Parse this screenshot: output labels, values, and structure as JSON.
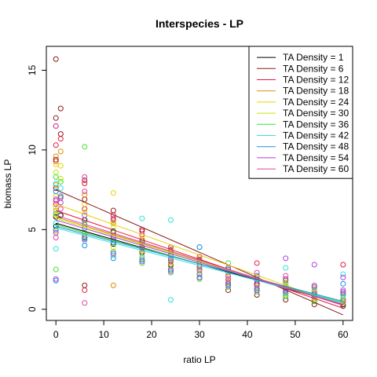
{
  "chart_data": {
    "type": "scatter",
    "title": "Interspecies - LP",
    "xlabel": "ratio LP",
    "ylabel": "biomass LP",
    "xlim": [
      -2,
      62
    ],
    "ylim": [
      -0.7,
      16.5
    ],
    "xticks": [
      0,
      10,
      20,
      30,
      40,
      50,
      60
    ],
    "yticks": [
      0,
      5,
      10,
      15
    ],
    "grid": false,
    "legend_position": "top-right",
    "point_style": "open-circle",
    "series": [
      {
        "name": "TA Density = 1",
        "color": "#000000",
        "fit": [
          5.4,
          0.3
        ],
        "points": [
          [
            0,
            5.8
          ],
          [
            0,
            5.2
          ],
          [
            1,
            5.9
          ],
          [
            6,
            5.6
          ],
          [
            6,
            4.5
          ],
          [
            12,
            4.9
          ],
          [
            12,
            4.1
          ],
          [
            18,
            4.2
          ],
          [
            18,
            3.6
          ],
          [
            24,
            3.7
          ],
          [
            24,
            2.8
          ],
          [
            30,
            3.1
          ],
          [
            30,
            2.4
          ],
          [
            36,
            2.5
          ],
          [
            36,
            1.8
          ],
          [
            42,
            2.0
          ],
          [
            42,
            1.6
          ],
          [
            48,
            1.5
          ],
          [
            48,
            1.0
          ],
          [
            54,
            1.1
          ],
          [
            54,
            0.7
          ],
          [
            60,
            0.6
          ],
          [
            60,
            0.3
          ]
        ]
      },
      {
        "name": "TA Density = 6",
        "color": "#8B1A1A",
        "fit": [
          7.5,
          -0.35
        ],
        "points": [
          [
            0,
            15.7
          ],
          [
            0,
            12.0
          ],
          [
            0,
            11.5
          ],
          [
            1,
            12.6
          ],
          [
            1,
            11.0
          ],
          [
            0,
            9.4
          ],
          [
            0,
            7.6
          ],
          [
            6,
            8.1
          ],
          [
            6,
            6.9
          ],
          [
            6,
            1.5
          ],
          [
            12,
            6.2
          ],
          [
            12,
            5.6
          ],
          [
            18,
            5.0
          ],
          [
            18,
            4.3
          ],
          [
            24,
            3.8
          ],
          [
            24,
            3.1
          ],
          [
            30,
            2.7
          ],
          [
            30,
            2.0
          ],
          [
            36,
            1.8
          ],
          [
            36,
            1.2
          ],
          [
            42,
            1.5
          ],
          [
            42,
            0.9
          ],
          [
            48,
            0.9
          ],
          [
            48,
            0.6
          ],
          [
            54,
            0.5
          ],
          [
            54,
            0.3
          ],
          [
            60,
            0.4
          ],
          [
            60,
            0.2
          ]
        ]
      },
      {
        "name": "TA Density = 12",
        "color": "#E8173F",
        "fit": [
          6.2,
          0.07
        ],
        "points": [
          [
            0,
            10.3
          ],
          [
            0,
            9.3
          ],
          [
            1,
            10.7
          ],
          [
            1,
            7.0
          ],
          [
            0,
            6.6
          ],
          [
            6,
            7.9
          ],
          [
            6,
            6.3
          ],
          [
            6,
            1.2
          ],
          [
            12,
            5.9
          ],
          [
            12,
            4.8
          ],
          [
            18,
            4.9
          ],
          [
            18,
            3.9
          ],
          [
            24,
            3.9
          ],
          [
            24,
            3.0
          ],
          [
            30,
            3.3
          ],
          [
            30,
            2.4
          ],
          [
            36,
            2.6
          ],
          [
            36,
            1.7
          ],
          [
            42,
            2.9
          ],
          [
            42,
            1.5
          ],
          [
            48,
            1.9
          ],
          [
            48,
            1.1
          ],
          [
            54,
            1.4
          ],
          [
            54,
            0.7
          ],
          [
            60,
            2.8
          ],
          [
            60,
            1.0
          ]
        ]
      },
      {
        "name": "TA Density = 18",
        "color": "#D98E00",
        "fit": [
          5.8,
          0.25
        ],
        "points": [
          [
            0,
            9.6
          ],
          [
            0,
            7.8
          ],
          [
            1,
            9.9
          ],
          [
            0,
            6.2
          ],
          [
            6,
            7.2
          ],
          [
            6,
            5.3
          ],
          [
            12,
            5.4
          ],
          [
            12,
            4.2
          ],
          [
            12,
            1.5
          ],
          [
            18,
            4.4
          ],
          [
            18,
            3.5
          ],
          [
            24,
            3.6
          ],
          [
            24,
            2.7
          ],
          [
            30,
            3.0
          ],
          [
            30,
            2.2
          ],
          [
            36,
            2.3
          ],
          [
            36,
            1.6
          ],
          [
            42,
            2.0
          ],
          [
            42,
            1.3
          ],
          [
            48,
            1.6
          ],
          [
            48,
            0.9
          ],
          [
            54,
            1.2
          ],
          [
            54,
            0.6
          ],
          [
            60,
            0.9
          ],
          [
            60,
            0.4
          ]
        ]
      },
      {
        "name": "TA Density = 24",
        "color": "#E8D000",
        "fit": [
          6.6,
          0.23
        ],
        "points": [
          [
            0,
            9.1
          ],
          [
            0,
            7.1
          ],
          [
            1,
            9.0
          ],
          [
            0,
            5.9
          ],
          [
            6,
            6.6
          ],
          [
            6,
            5.1
          ],
          [
            12,
            7.3
          ],
          [
            12,
            5.5
          ],
          [
            18,
            4.6
          ],
          [
            18,
            3.7
          ],
          [
            24,
            3.8
          ],
          [
            24,
            2.9
          ],
          [
            30,
            3.2
          ],
          [
            30,
            2.4
          ],
          [
            36,
            2.5
          ],
          [
            36,
            1.8
          ],
          [
            42,
            2.1
          ],
          [
            42,
            1.4
          ],
          [
            48,
            1.7
          ],
          [
            48,
            1.0
          ],
          [
            54,
            1.3
          ],
          [
            54,
            0.7
          ],
          [
            60,
            1.0
          ],
          [
            60,
            0.5
          ]
        ]
      },
      {
        "name": "TA Density = 30",
        "color": "#C8E600",
        "fit": [
          5.7,
          0.35
        ],
        "points": [
          [
            0,
            8.6
          ],
          [
            0,
            6.4
          ],
          [
            1,
            8.2
          ],
          [
            0,
            4.9
          ],
          [
            6,
            6.1
          ],
          [
            6,
            4.8
          ],
          [
            12,
            5.1
          ],
          [
            12,
            3.9
          ],
          [
            18,
            4.1
          ],
          [
            18,
            3.2
          ],
          [
            24,
            3.4
          ],
          [
            24,
            2.5
          ],
          [
            30,
            2.8
          ],
          [
            30,
            2.0
          ],
          [
            36,
            2.2
          ],
          [
            36,
            1.5
          ],
          [
            42,
            1.9
          ],
          [
            42,
            1.2
          ],
          [
            48,
            1.5
          ],
          [
            48,
            0.9
          ],
          [
            54,
            1.1
          ],
          [
            54,
            0.6
          ],
          [
            60,
            0.8
          ],
          [
            60,
            0.4
          ]
        ]
      },
      {
        "name": "TA Density = 36",
        "color": "#3AE03A",
        "fit": [
          5.3,
          0.43
        ],
        "points": [
          [
            0,
            8.3
          ],
          [
            0,
            6.0
          ],
          [
            1,
            8.0
          ],
          [
            0,
            2.5
          ],
          [
            6,
            10.2
          ],
          [
            6,
            4.6
          ],
          [
            12,
            4.8
          ],
          [
            12,
            3.6
          ],
          [
            18,
            3.8
          ],
          [
            18,
            2.9
          ],
          [
            24,
            3.1
          ],
          [
            24,
            2.3
          ],
          [
            30,
            2.6
          ],
          [
            30,
            1.9
          ],
          [
            36,
            2.9
          ],
          [
            36,
            1.4
          ],
          [
            42,
            1.8
          ],
          [
            42,
            1.1
          ],
          [
            48,
            1.4
          ],
          [
            48,
            0.8
          ],
          [
            54,
            1.0
          ],
          [
            54,
            0.5
          ],
          [
            60,
            0.9
          ],
          [
            60,
            0.6
          ]
        ]
      },
      {
        "name": "TA Density = 42",
        "color": "#30E0E0",
        "fit": [
          5.1,
          0.4
        ],
        "points": [
          [
            0,
            7.9
          ],
          [
            0,
            5.4
          ],
          [
            1,
            7.6
          ],
          [
            0,
            3.8
          ],
          [
            6,
            5.4
          ],
          [
            6,
            4.3
          ],
          [
            12,
            4.4
          ],
          [
            12,
            3.4
          ],
          [
            18,
            5.7
          ],
          [
            18,
            3.3
          ],
          [
            24,
            5.6
          ],
          [
            24,
            0.6
          ],
          [
            30,
            3.9
          ],
          [
            30,
            2.0
          ],
          [
            36,
            2.4
          ],
          [
            36,
            1.5
          ],
          [
            42,
            1.9
          ],
          [
            42,
            1.2
          ],
          [
            48,
            2.6
          ],
          [
            48,
            1.0
          ],
          [
            54,
            1.4
          ],
          [
            54,
            0.8
          ],
          [
            60,
            2.2
          ],
          [
            60,
            0.9
          ]
        ]
      },
      {
        "name": "TA Density = 48",
        "color": "#1E90E0",
        "fit": [
          5.2,
          0.5
        ],
        "points": [
          [
            0,
            7.4
          ],
          [
            0,
            5.0
          ],
          [
            1,
            7.1
          ],
          [
            0,
            1.8
          ],
          [
            6,
            5.1
          ],
          [
            6,
            4.0
          ],
          [
            12,
            4.2
          ],
          [
            12,
            3.2
          ],
          [
            18,
            4.2
          ],
          [
            18,
            3.1
          ],
          [
            24,
            3.4
          ],
          [
            24,
            2.5
          ],
          [
            30,
            3.9
          ],
          [
            30,
            2.2
          ],
          [
            36,
            2.5
          ],
          [
            36,
            1.6
          ],
          [
            42,
            2.1
          ],
          [
            42,
            1.3
          ],
          [
            48,
            1.8
          ],
          [
            48,
            1.1
          ],
          [
            54,
            1.4
          ],
          [
            54,
            0.9
          ],
          [
            60,
            1.6
          ],
          [
            60,
            1.0
          ]
        ]
      },
      {
        "name": "TA Density = 54",
        "color": "#B040E0",
        "fit": [
          5.6,
          0.31
        ],
        "points": [
          [
            0,
            6.9
          ],
          [
            0,
            4.8
          ],
          [
            1,
            6.7
          ],
          [
            0,
            1.9
          ],
          [
            6,
            5.9
          ],
          [
            6,
            4.4
          ],
          [
            12,
            4.5
          ],
          [
            12,
            3.5
          ],
          [
            18,
            3.9
          ],
          [
            18,
            3.0
          ],
          [
            24,
            3.2
          ],
          [
            24,
            2.4
          ],
          [
            30,
            2.7
          ],
          [
            30,
            2.0
          ],
          [
            36,
            2.1
          ],
          [
            36,
            1.5
          ],
          [
            42,
            1.8
          ],
          [
            42,
            1.2
          ],
          [
            48,
            3.2
          ],
          [
            48,
            1.3
          ],
          [
            54,
            2.8
          ],
          [
            54,
            1.0
          ],
          [
            60,
            2.0
          ],
          [
            60,
            1.2
          ]
        ]
      },
      {
        "name": "TA Density = 60",
        "color": "#E040B0",
        "fit": [
          5.9,
          0.25
        ],
        "points": [
          [
            0,
            11.5
          ],
          [
            0,
            6.8
          ],
          [
            1,
            6.3
          ],
          [
            0,
            4.5
          ],
          [
            6,
            8.3
          ],
          [
            6,
            7.4
          ],
          [
            6,
            0.4
          ],
          [
            12,
            5.7
          ],
          [
            12,
            4.6
          ],
          [
            18,
            4.7
          ],
          [
            18,
            3.8
          ],
          [
            24,
            3.9
          ],
          [
            24,
            3.0
          ],
          [
            30,
            3.3
          ],
          [
            30,
            2.5
          ],
          [
            36,
            2.6
          ],
          [
            36,
            1.9
          ],
          [
            42,
            2.3
          ],
          [
            42,
            1.5
          ],
          [
            48,
            2.1
          ],
          [
            48,
            1.2
          ],
          [
            54,
            1.5
          ],
          [
            54,
            0.8
          ],
          [
            60,
            1.1
          ],
          [
            60,
            0.5
          ]
        ]
      }
    ]
  }
}
